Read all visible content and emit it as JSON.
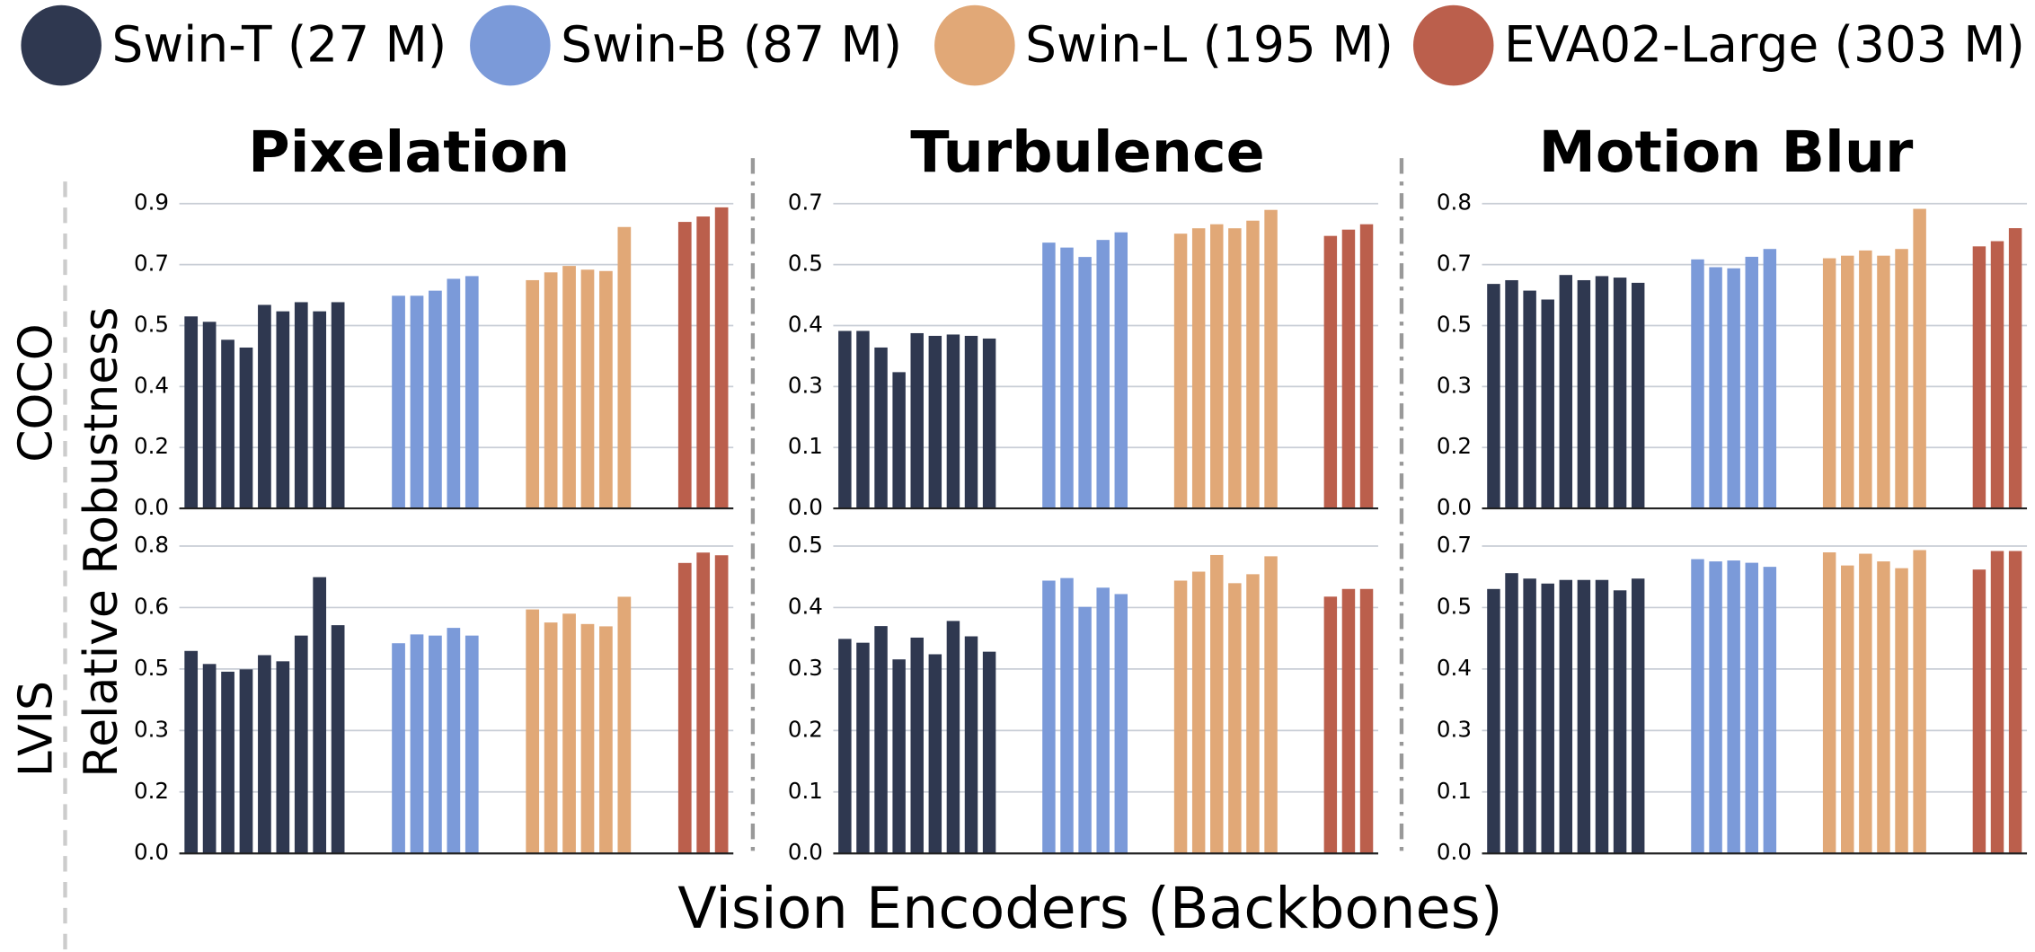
{
  "legend": [
    {
      "name": "Swin-T (27 M)",
      "color": "#2f3850"
    },
    {
      "name": "Swin-B (87 M)",
      "color": "#7b9ad9"
    },
    {
      "name": "Swin-L (195 M)",
      "color": "#e1a877"
    },
    {
      "name": "EVA02-Large (303 M)",
      "color": "#bb5f4c"
    }
  ],
  "y_label": "Relative Robustness",
  "x_label": "Vision Encoders (Backbones)",
  "row_labels": [
    "COCO",
    "LVIS"
  ],
  "chart_data": [
    {
      "type": "bar",
      "title": "Pixelation",
      "ylim": [
        0,
        0.9
      ],
      "grid": true,
      "yticks": [
        {
          "value": 0,
          "label": "0.0"
        },
        {
          "value": 0.18,
          "label": "0.2"
        },
        {
          "value": 0.36,
          "label": "0.4"
        },
        {
          "value": 0.54,
          "label": "0.5"
        },
        {
          "value": 0.72,
          "label": "0.7"
        },
        {
          "value": 0.9,
          "label": "0.9"
        }
      ],
      "series": [
        {
          "values": [
            0.567,
            0.551,
            0.498,
            0.475,
            0.601,
            0.582,
            0.609,
            0.582,
            0.609
          ]
        },
        {
          "values": [
            0.628,
            0.628,
            0.643,
            0.678,
            0.686
          ]
        },
        {
          "values": [
            0.674,
            0.697,
            0.716,
            0.705,
            0.701,
            0.831
          ]
        },
        {
          "values": [
            0.846,
            0.862,
            0.889
          ]
        }
      ]
    },
    {
      "type": "bar",
      "title": "Turbulence",
      "ylim": [
        0,
        0.68
      ],
      "grid": true,
      "yticks": [
        {
          "value": 0,
          "label": "0.0"
        },
        {
          "value": 0.136,
          "label": "0.1"
        },
        {
          "value": 0.272,
          "label": "0.3"
        },
        {
          "value": 0.408,
          "label": "0.4"
        },
        {
          "value": 0.544,
          "label": "0.5"
        },
        {
          "value": 0.68,
          "label": "0.7"
        }
      ],
      "series": [
        {
          "values": [
            0.396,
            0.396,
            0.359,
            0.304,
            0.391,
            0.385,
            0.388,
            0.385,
            0.379
          ]
        },
        {
          "values": [
            0.593,
            0.582,
            0.561,
            0.599,
            0.616
          ]
        },
        {
          "values": [
            0.613,
            0.625,
            0.634,
            0.625,
            0.642,
            0.666
          ]
        },
        {
          "values": [
            0.608,
            0.622,
            0.634
          ]
        }
      ]
    },
    {
      "type": "bar",
      "title": "Motion Blur",
      "ylim": [
        0,
        0.82
      ],
      "grid": true,
      "yticks": [
        {
          "value": 0,
          "label": "0.0"
        },
        {
          "value": 0.164,
          "label": "0.2"
        },
        {
          "value": 0.328,
          "label": "0.3"
        },
        {
          "value": 0.492,
          "label": "0.5"
        },
        {
          "value": 0.656,
          "label": "0.7"
        },
        {
          "value": 0.82,
          "label": "0.8"
        }
      ],
      "series": [
        {
          "values": [
            0.604,
            0.614,
            0.586,
            0.562,
            0.628,
            0.614,
            0.625,
            0.621,
            0.607
          ]
        },
        {
          "values": [
            0.67,
            0.649,
            0.646,
            0.677,
            0.698
          ]
        },
        {
          "values": [
            0.673,
            0.68,
            0.694,
            0.68,
            0.698,
            0.806
          ]
        },
        {
          "values": [
            0.705,
            0.719,
            0.754
          ]
        }
      ]
    },
    {
      "type": "bar",
      "ylim": [
        0,
        0.8
      ],
      "grid": true,
      "yticks": [
        {
          "value": 0,
          "label": "0.0"
        },
        {
          "value": 0.16,
          "label": "0.2"
        },
        {
          "value": 0.32,
          "label": "0.3"
        },
        {
          "value": 0.48,
          "label": "0.5"
        },
        {
          "value": 0.64,
          "label": "0.6"
        },
        {
          "value": 0.8,
          "label": "0.8"
        }
      ],
      "series": [
        {
          "values": [
            0.527,
            0.493,
            0.473,
            0.479,
            0.516,
            0.5,
            0.567,
            0.719,
            0.594
          ]
        },
        {
          "values": [
            0.547,
            0.57,
            0.567,
            0.587,
            0.567
          ]
        },
        {
          "values": [
            0.635,
            0.601,
            0.624,
            0.597,
            0.591,
            0.668
          ]
        },
        {
          "values": [
            0.756,
            0.783,
            0.776
          ]
        }
      ]
    },
    {
      "type": "bar",
      "ylim": [
        0,
        0.48
      ],
      "grid": true,
      "yticks": [
        {
          "value": 0,
          "label": "0.0"
        },
        {
          "value": 0.096,
          "label": "0.1"
        },
        {
          "value": 0.192,
          "label": "0.2"
        },
        {
          "value": 0.288,
          "label": "0.3"
        },
        {
          "value": 0.384,
          "label": "0.4"
        },
        {
          "value": 0.48,
          "label": "0.5"
        }
      ],
      "series": [
        {
          "values": [
            0.335,
            0.329,
            0.355,
            0.303,
            0.337,
            0.311,
            0.363,
            0.339,
            0.315
          ]
        },
        {
          "values": [
            0.426,
            0.43,
            0.385,
            0.415,
            0.405
          ]
        },
        {
          "values": [
            0.426,
            0.44,
            0.466,
            0.422,
            0.436,
            0.464
          ]
        },
        {
          "values": [
            0.401,
            0.413,
            0.413
          ]
        }
      ]
    },
    {
      "type": "bar",
      "ylim": [
        0,
        0.68
      ],
      "grid": true,
      "yticks": [
        {
          "value": 0,
          "label": "0.0"
        },
        {
          "value": 0.136,
          "label": "0.1"
        },
        {
          "value": 0.272,
          "label": "0.3"
        },
        {
          "value": 0.408,
          "label": "0.4"
        },
        {
          "value": 0.544,
          "label": "0.5"
        },
        {
          "value": 0.68,
          "label": "0.7"
        }
      ],
      "series": [
        {
          "values": [
            0.585,
            0.62,
            0.608,
            0.597,
            0.605,
            0.605,
            0.605,
            0.582,
            0.608
          ]
        },
        {
          "values": [
            0.651,
            0.646,
            0.648,
            0.643,
            0.634
          ]
        },
        {
          "values": [
            0.666,
            0.637,
            0.663,
            0.646,
            0.631,
            0.671
          ]
        },
        {
          "values": [
            0.628,
            0.669,
            0.669
          ]
        }
      ]
    }
  ]
}
